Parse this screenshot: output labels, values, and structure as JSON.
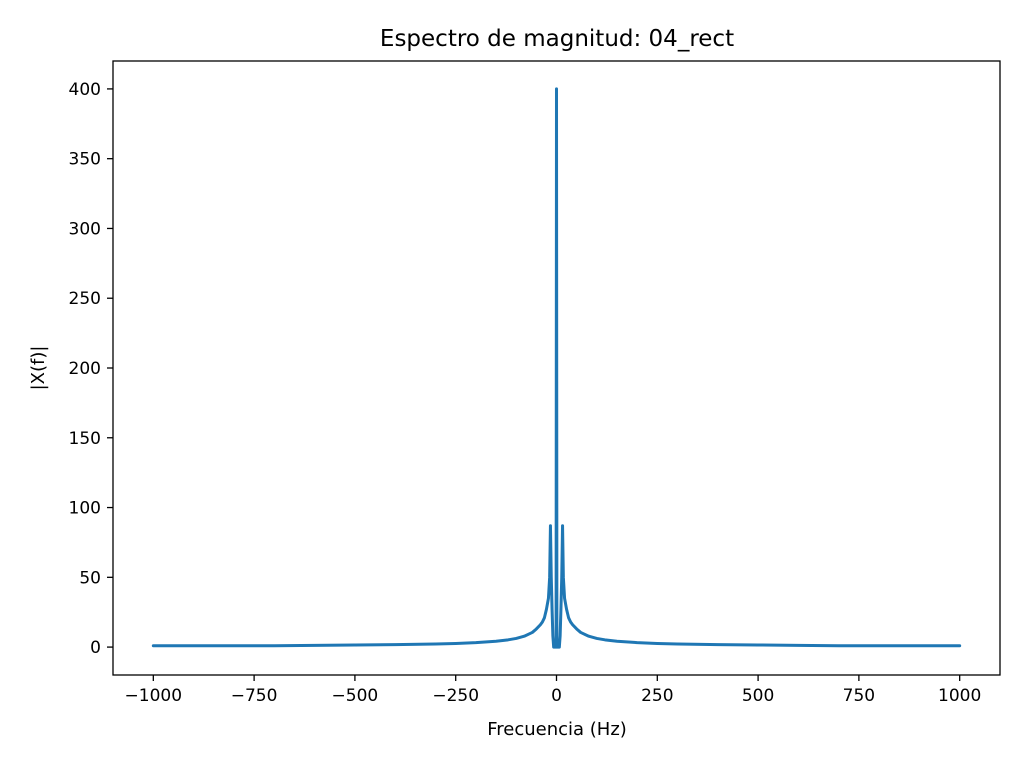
{
  "chart_data": {
    "type": "line",
    "title": "Espectro de magnitud: 04_rect",
    "xlabel": "Frecuencia (Hz)",
    "ylabel": "|X(f)|",
    "xlim": [
      -1100,
      1100
    ],
    "ylim": [
      -20,
      420
    ],
    "xticks": [
      -1000,
      -750,
      -500,
      -250,
      0,
      250,
      500,
      750,
      1000
    ],
    "xtick_labels": [
      "−1000",
      "−750",
      "−500",
      "−250",
      "0",
      "250",
      "500",
      "750",
      "1000"
    ],
    "yticks": [
      0,
      50,
      100,
      150,
      200,
      250,
      300,
      350,
      400
    ],
    "ytick_labels": [
      "0",
      "50",
      "100",
      "150",
      "200",
      "250",
      "300",
      "350",
      "400"
    ],
    "grid": false,
    "series": [
      {
        "color": "#1f77b4",
        "x": [
          -1000,
          -900,
          -800,
          -700,
          -600,
          -500,
          -400,
          -300,
          -250,
          -200,
          -150,
          -120,
          -100,
          -80,
          -60,
          -50,
          -40,
          -35,
          -30,
          -25,
          -20,
          -17,
          -15,
          -13,
          -11,
          -9,
          -7,
          -5,
          -3,
          -1,
          0,
          1,
          3,
          5,
          7,
          9,
          11,
          13,
          15,
          17,
          20,
          25,
          30,
          35,
          40,
          50,
          60,
          80,
          100,
          120,
          150,
          200,
          250,
          300,
          400,
          500,
          600,
          700,
          800,
          900,
          1000
        ],
        "y": [
          1,
          1,
          1,
          1,
          1.2,
          1.5,
          1.8,
          2.2,
          2.6,
          3.2,
          4.2,
          5.2,
          6.2,
          7.8,
          10.5,
          13,
          16,
          18,
          21,
          27,
          35,
          50,
          87,
          50,
          27,
          8,
          0,
          0,
          0,
          0,
          400,
          0,
          0,
          0,
          0,
          8,
          27,
          50,
          87,
          50,
          35,
          27,
          21,
          18,
          16,
          13,
          10.5,
          7.8,
          6.2,
          5.2,
          4.2,
          3.2,
          2.6,
          2.2,
          1.8,
          1.5,
          1.2,
          1,
          1,
          1,
          1
        ]
      }
    ]
  }
}
